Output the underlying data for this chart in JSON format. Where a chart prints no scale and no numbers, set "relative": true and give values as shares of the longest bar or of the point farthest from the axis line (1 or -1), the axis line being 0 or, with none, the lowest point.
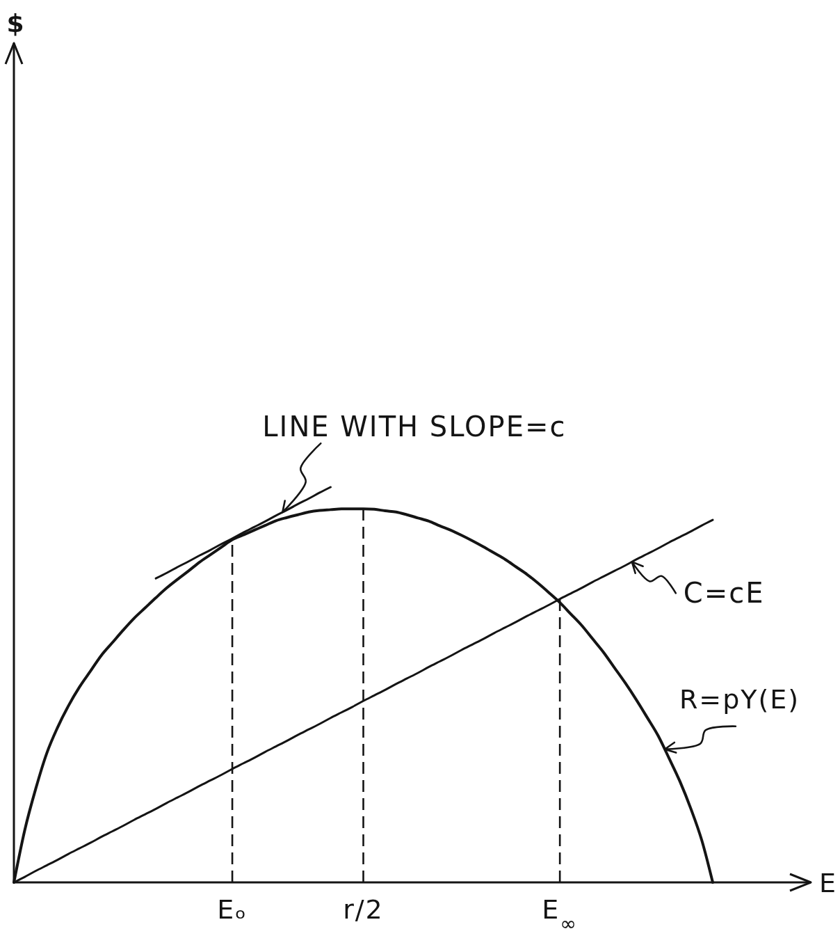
{
  "chart_data": {
    "type": "line",
    "xlabel": "E",
    "relative": true,
    "categories": [
      null,
      null,
      null,
      null,
      null,
      null,
      null,
      null,
      null,
      null,
      null,
      null,
      null,
      null,
      null,
      null,
      null,
      null,
      null,
      null,
      "Eₒ",
      null,
      null,
      null,
      null,
      null,
      null,
      null,
      null,
      null,
      null,
      null,
      "r/2",
      null,
      null,
      null,
      null,
      null,
      null,
      null,
      null,
      null,
      null,
      null,
      null,
      null,
      null,
      null,
      null,
      null,
      "E$_{∞}$",
      null,
      null,
      null,
      null,
      null,
      null,
      null,
      null,
      null,
      null,
      null,
      null,
      null,
      null
    ],
    "series": [
      {
        "name": "R=pY(E)",
        "color": "#141414",
        "values": [
          0,
          0.133,
          0.237,
          0.326,
          0.392,
          0.447,
          0.494,
          0.534,
          0.574,
          0.606,
          0.638,
          0.668,
          0.694,
          0.72,
          0.745,
          0.767,
          0.788,
          0.81,
          0.829,
          0.848,
          0.867,
          0.879,
          0.891,
          0.903,
          0.915,
          0.923,
          0.93,
          0.937,
          0.941,
          0.943,
          0.945,
          0.945,
          0.945,
          0.944,
          0.94,
          0.937,
          0.93,
          0.922,
          0.914,
          0.902,
          0.891,
          0.878,
          0.864,
          0.849,
          0.833,
          0.817,
          0.798,
          0.779,
          0.757,
          0.733,
          0.708,
          0.679,
          0.65,
          0.616,
          0.582,
          0.543,
          0.504,
          0.462,
          0.417,
          0.371,
          0.314,
          0.255,
          0.186,
          0.106,
          0
        ]
      },
      {
        "name": "C=cE",
        "color": "#141414",
        "values": [
          0,
          0.014,
          0.029,
          0.043,
          0.057,
          0.072,
          0.086,
          0.1,
          0.115,
          0.129,
          0.143,
          0.158,
          0.172,
          0.186,
          0.201,
          0.215,
          0.229,
          0.244,
          0.258,
          0.272,
          0.287,
          0.301,
          0.315,
          0.33,
          0.344,
          0.358,
          0.373,
          0.387,
          0.401,
          0.416,
          0.43,
          0.444,
          0.459,
          0.473,
          0.487,
          0.502,
          0.516,
          0.53,
          0.545,
          0.559,
          0.573,
          0.588,
          0.602,
          0.616,
          0.631,
          0.645,
          0.659,
          0.674,
          0.688,
          0.702,
          0.717,
          0.731,
          0.745,
          0.76,
          0.774,
          0.788,
          0.802,
          0.817,
          0.831,
          0.845,
          0.86,
          0.874,
          0.888,
          0.903,
          0.917
        ]
      },
      {
        "name": "LINE WITH SLOPE=c",
        "color": "#141414",
        "values": [
          null,
          null,
          null,
          null,
          null,
          null,
          null,
          null,
          null,
          null,
          null,
          null,
          null,
          0.769,
          0.783,
          0.798,
          0.812,
          0.827,
          0.841,
          0.856,
          0.87,
          0.885,
          0.899,
          0.913,
          0.928,
          0.942,
          0.957,
          0.971,
          0.986,
          1.0,
          null,
          null,
          null,
          null,
          null,
          null,
          null,
          null,
          null,
          null,
          null,
          null,
          null,
          null,
          null,
          null,
          null,
          null,
          null,
          null,
          null,
          null,
          null,
          null,
          null,
          null,
          null,
          null,
          null,
          null,
          null,
          null,
          null,
          null,
          null
        ]
      }
    ],
    "ref_lines": [
      {
        "axis": "x",
        "value": "Eₒ",
        "color": "#141414",
        "line_style": "dashed"
      },
      {
        "axis": "x",
        "value": "r/2",
        "color": "#141414",
        "line_style": "dashed"
      },
      {
        "axis": "x",
        "value": "E$_{∞}$",
        "color": "#141414",
        "line_style": "dashed"
      }
    ],
    "annotations": [
      "$"
    ]
  }
}
